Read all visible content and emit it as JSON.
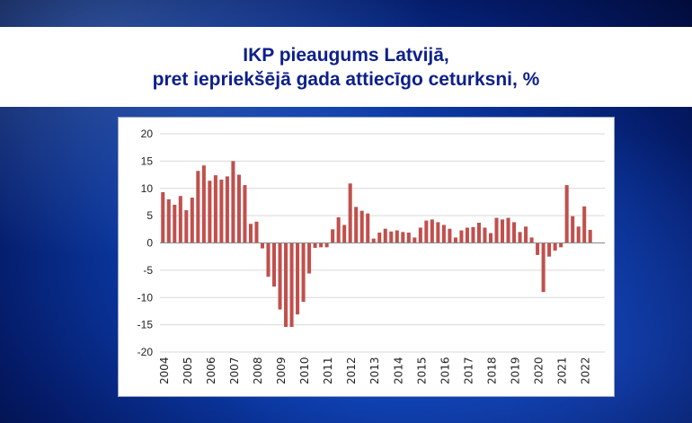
{
  "header": {
    "title_line1": "IKP pieaugums Latvijā,",
    "title_line2": "pret iepriekšējā gada attiecīgo ceturksni, %"
  },
  "colors": {
    "bar": "#c0504d",
    "title": "#0d1f8a",
    "grid": "#d9d9d9"
  },
  "chart_data": {
    "type": "bar",
    "title": "IKP pieaugums Latvijā, pret iepriekšējā gada attiecīgo ceturksni, %",
    "xlabel": "",
    "ylabel": "",
    "ylim": [
      -20,
      20
    ],
    "yticks": [
      20,
      15,
      10,
      5,
      0,
      -5,
      -10,
      -15,
      -20
    ],
    "grid": true,
    "x_tick_labels": [
      "2004",
      "2005",
      "2006",
      "2007",
      "2008",
      "2009",
      "2010",
      "2011",
      "2012",
      "2013",
      "2014",
      "2015",
      "2016",
      "2017",
      "2018",
      "2019",
      "2020",
      "2021",
      "2022"
    ],
    "quarters_per_year": 4,
    "values": [
      9.3,
      8.0,
      7.0,
      8.6,
      6.0,
      8.3,
      13.2,
      14.2,
      11.4,
      12.4,
      11.6,
      12.2,
      15.0,
      12.5,
      10.6,
      3.5,
      3.9,
      -1.0,
      -6.2,
      -8.0,
      -12.2,
      -15.4,
      -15.4,
      -13.1,
      -10.8,
      -5.6,
      -0.9,
      -0.8,
      -0.8,
      2.5,
      4.7,
      3.3,
      10.9,
      6.6,
      5.9,
      5.4,
      0.8,
      1.9,
      2.6,
      2.1,
      2.3,
      2.0,
      1.9,
      1.0,
      2.8,
      4.1,
      4.3,
      3.8,
      3.3,
      2.6,
      1.0,
      2.3,
      2.8,
      2.9,
      3.7,
      2.8,
      1.8,
      4.6,
      4.3,
      4.6,
      3.8,
      2.0,
      3.0,
      1.0,
      -2.2,
      -9.0,
      -2.5,
      -1.4,
      -0.8,
      10.6,
      4.9,
      3.0,
      6.7,
      2.4
    ]
  }
}
